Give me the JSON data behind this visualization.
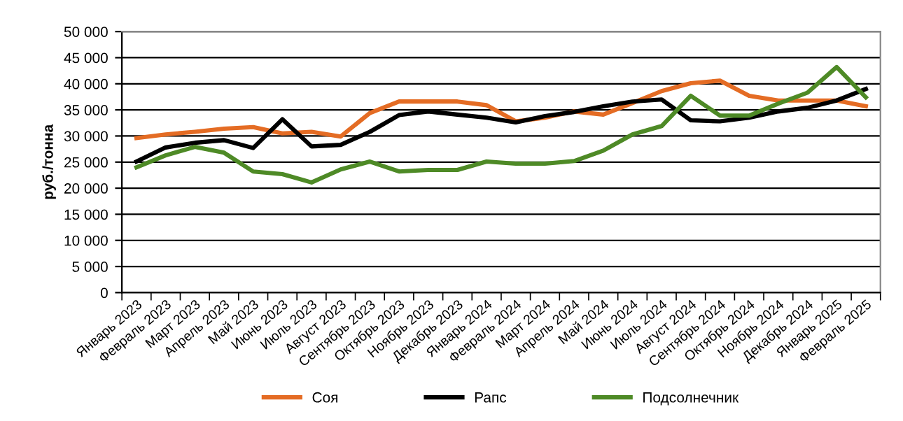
{
  "chart_data": {
    "type": "line",
    "ylabel": "руб./тонна",
    "categories": [
      "Январь 2023",
      "Февраль 2023",
      "Март 2023",
      "Апрель 2023",
      "Май 2023",
      "Июнь 2023",
      "Июль 2023",
      "Август 2023",
      "Сентябрь 2023",
      "Октябрь 2023",
      "Ноябрь 2023",
      "Декабрь 2023",
      "Январь 2024",
      "Февраль 2024",
      "Март 2024",
      "Апрель 2024",
      "Май 2024",
      "Июнь 2024",
      "Июль 2024",
      "Август 2024",
      "Сентябрь 2024",
      "Октябрь 2024",
      "Ноябрь 2024",
      "Декабрь 2024",
      "Январь 2025",
      "Февраль 2025"
    ],
    "series": [
      {
        "name": "Соя",
        "color": "#e46c24",
        "values": [
          29600,
          30300,
          30800,
          31400,
          31700,
          30500,
          30800,
          29900,
          34400,
          36600,
          36600,
          36600,
          35900,
          32800,
          33500,
          34700,
          34100,
          36300,
          38600,
          40100,
          40600,
          37700,
          36800,
          36800,
          36800,
          35700
        ]
      },
      {
        "name": "Рапс",
        "color": "#000000",
        "values": [
          25100,
          27800,
          28700,
          29200,
          27700,
          33200,
          28000,
          28300,
          30800,
          34000,
          34700,
          34100,
          33500,
          32600,
          33800,
          34600,
          35700,
          36600,
          37000,
          33000,
          32800,
          33500,
          34700,
          35400,
          36800,
          39000
        ]
      },
      {
        "name": "Подсолнечник",
        "color": "#4e8a26",
        "values": [
          24000,
          26300,
          27900,
          26800,
          23200,
          22700,
          21100,
          23600,
          25100,
          23200,
          23500,
          23500,
          25100,
          24700,
          24700,
          25200,
          27200,
          30300,
          31900,
          37700,
          33900,
          33900,
          36200,
          38300,
          43200,
          37400
        ]
      }
    ],
    "ylim": [
      0,
      50000
    ],
    "yticks": [
      0,
      {
        "value": 5000,
        "label": "5 000"
      },
      {
        "value": 10000,
        "label": "10 000"
      },
      {
        "value": 15000,
        "label": "15 000"
      },
      {
        "value": 20000,
        "label": "20 000"
      },
      {
        "value": 25000,
        "label": "25 000"
      },
      {
        "value": 30000,
        "label": "30 000"
      },
      {
        "value": 35000,
        "label": "35 000"
      },
      {
        "value": 40000,
        "label": "40 000"
      },
      {
        "value": 45000,
        "label": "45 000"
      },
      {
        "value": 50000,
        "label": "50 000"
      }
    ],
    "grid": "y",
    "legend": "bottom",
    "marker": "none",
    "line_style": "solid"
  }
}
